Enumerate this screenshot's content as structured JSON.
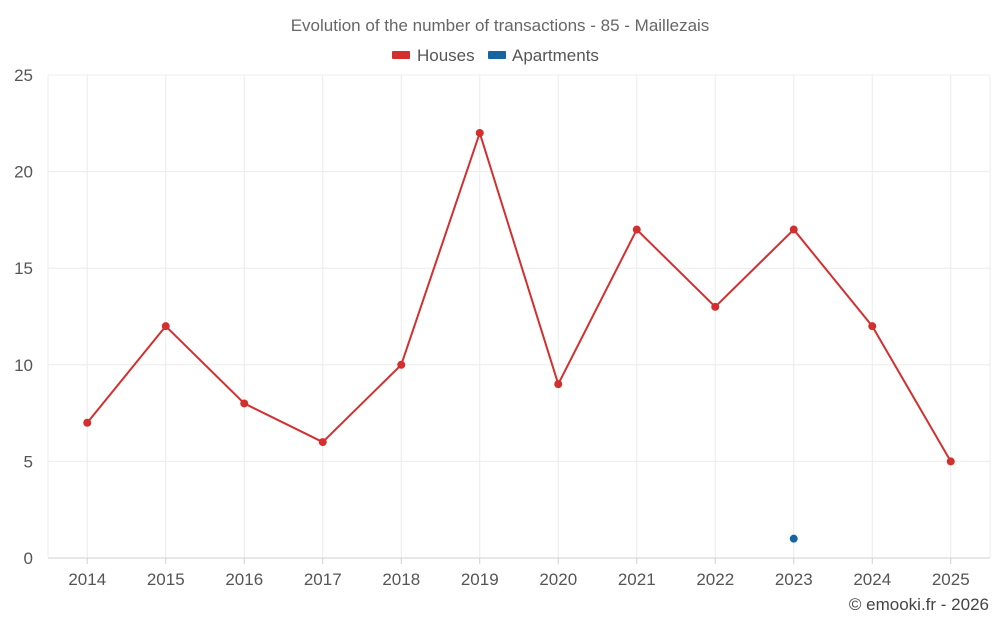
{
  "chart_data": {
    "type": "line",
    "title": "Evolution of the number of transactions - 85 - Maillezais",
    "categories": [
      "2014",
      "2015",
      "2016",
      "2017",
      "2018",
      "2019",
      "2020",
      "2021",
      "2022",
      "2023",
      "2024",
      "2025"
    ],
    "series": [
      {
        "name": "Houses",
        "color": "#d32f2f",
        "values": [
          7,
          12,
          8,
          6,
          10,
          22,
          9,
          17,
          13,
          17,
          12,
          5
        ]
      },
      {
        "name": "Apartments",
        "color": "#1565a0",
        "values": [
          null,
          null,
          null,
          null,
          null,
          null,
          null,
          null,
          null,
          1,
          null,
          null
        ]
      }
    ],
    "ylim": [
      0,
      25
    ],
    "yticks": [
      "0",
      "5",
      "10",
      "15",
      "20",
      "25"
    ],
    "xlabel": "",
    "ylabel": "",
    "grid": true,
    "legend": "top-center"
  },
  "credit": "© emooki.fr - 2026"
}
